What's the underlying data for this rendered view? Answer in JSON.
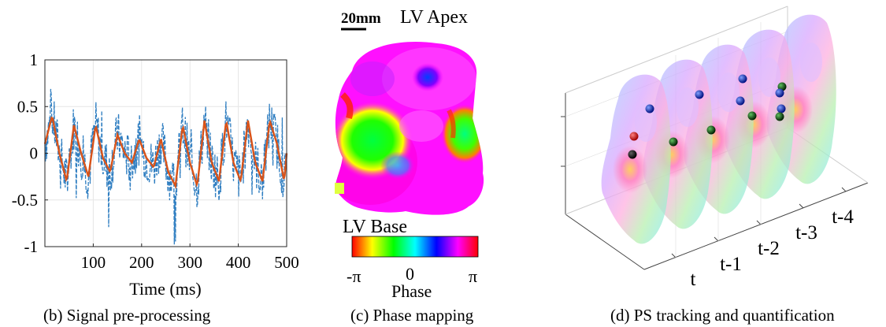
{
  "panel_b": {
    "caption": "(b) Signal pre-processing",
    "chart_data": {
      "type": "line",
      "xlabel": "Time (ms)",
      "ylabel": "",
      "xlim": [
        0,
        500
      ],
      "ylim": [
        -1,
        1
      ],
      "x_ticks": [
        100,
        200,
        300,
        400,
        500
      ],
      "y_ticks": [
        1,
        0.5,
        0,
        -0.5,
        -1
      ],
      "x_tick_labels": [
        "100",
        "200",
        "300",
        "400",
        "500"
      ],
      "y_tick_labels": [
        "1",
        "0.5",
        "0",
        "-0.5",
        "-1"
      ],
      "grid": true,
      "series": [
        {
          "style": "dashed",
          "color": "#2f7ec1",
          "description_values": "raw noisy signal oscillating roughly between -1 and 1"
        },
        {
          "style": "solid",
          "color": "#d95319"
        }
      ],
      "filtered": {
        "x": [
          0,
          15,
          30,
          45,
          60,
          75,
          90,
          105,
          120,
          135,
          150,
          165,
          180,
          195,
          210,
          225,
          240,
          255,
          270,
          285,
          300,
          315,
          330,
          345,
          360,
          375,
          390,
          405,
          420,
          435,
          450,
          465,
          480,
          495,
          500
        ],
        "y": [
          0.1,
          0.4,
          0.0,
          -0.3,
          0.3,
          0.0,
          -0.25,
          0.3,
          -0.05,
          -0.2,
          0.2,
          0.0,
          -0.1,
          0.15,
          -0.05,
          -0.15,
          0.15,
          -0.2,
          -0.35,
          0.3,
          -0.1,
          -0.35,
          0.35,
          -0.1,
          -0.3,
          0.35,
          -0.1,
          -0.3,
          0.35,
          -0.1,
          -0.3,
          0.35,
          0.1,
          -0.3,
          0.0
        ]
      }
    }
  },
  "panel_c": {
    "caption": "(c) Phase mapping",
    "scale_label": "20mm",
    "apex_label": "LV Apex",
    "base_label": "LV Base",
    "colorbar_min": "-π",
    "colorbar_mid": "0",
    "colorbar_max": "π",
    "colorbar_title": "Phase"
  },
  "panel_d": {
    "caption": "(d) PS tracking and quantification",
    "time_labels": [
      "t",
      "t-1",
      "t-2",
      "t-3",
      "t-4"
    ]
  }
}
